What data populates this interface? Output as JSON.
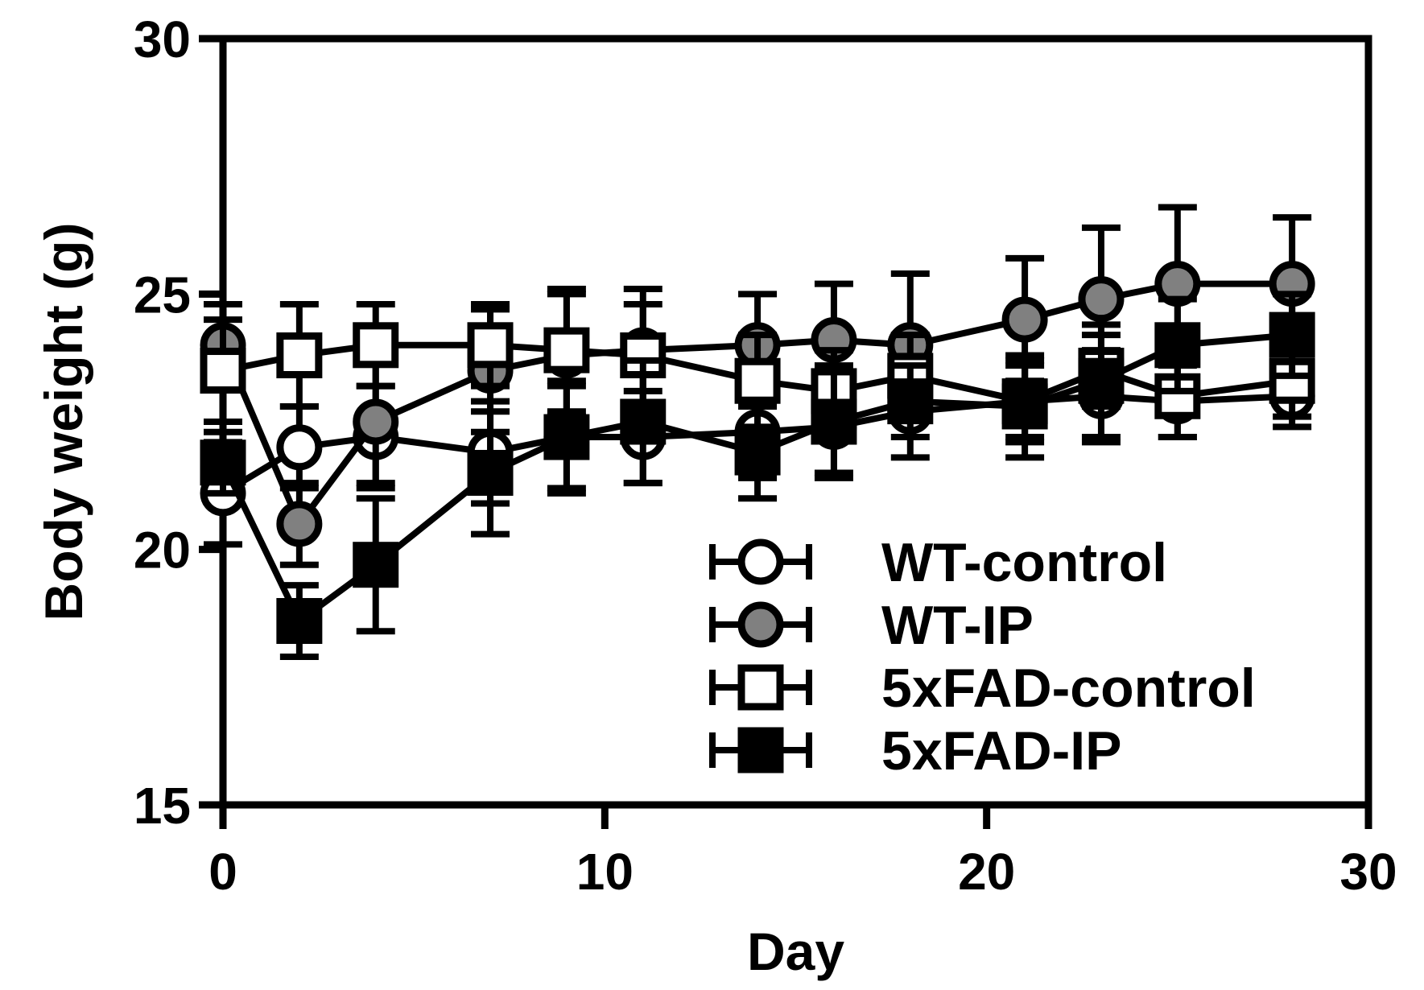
{
  "chart_data": {
    "type": "line",
    "title": "",
    "xlabel": "Day",
    "ylabel": "Body weight (g)",
    "xlim": [
      0,
      30
    ],
    "ylim": [
      15,
      30
    ],
    "xticks": [
      0,
      10,
      20,
      30
    ],
    "yticks": [
      15,
      20,
      25,
      30
    ],
    "grid": false,
    "legend_position": "bottom-right",
    "x": [
      0,
      2,
      4,
      7,
      9,
      11,
      14,
      16,
      18,
      21,
      23,
      25,
      28
    ],
    "series": [
      {
        "name": "WT-control",
        "marker": "circle",
        "fill": "#ffffff",
        "values": [
          21.1,
          22.0,
          22.2,
          21.9,
          22.2,
          22.2,
          22.3,
          22.4,
          22.7,
          22.9,
          23.0,
          22.9,
          23.0
        ],
        "errors": [
          1.0,
          0.8,
          1.0,
          1.0,
          1.0,
          0.9,
          0.9,
          0.9,
          0.9,
          0.7,
          0.9,
          0.7,
          0.6
        ]
      },
      {
        "name": "WT-IP",
        "marker": "circle",
        "fill": "#808080",
        "values": [
          24.0,
          20.5,
          22.5,
          23.5,
          23.8,
          23.9,
          24.0,
          24.1,
          24.0,
          24.5,
          24.9,
          25.2,
          25.2
        ],
        "errors": [
          0.8,
          0.8,
          1.2,
          1.2,
          1.2,
          1.2,
          1.0,
          1.1,
          1.4,
          1.2,
          1.4,
          1.5,
          1.3
        ]
      },
      {
        "name": "5xFAD-control",
        "marker": "square",
        "fill": "#ffffff",
        "values": [
          23.5,
          23.8,
          24.0,
          24.0,
          23.9,
          23.8,
          23.3,
          23.1,
          23.4,
          22.9,
          23.5,
          23.0,
          23.3
        ],
        "errors": [
          1.0,
          1.0,
          0.8,
          0.8,
          1.2,
          1.0,
          0.9,
          0.8,
          0.8,
          0.8,
          0.7,
          0.8,
          0.7
        ]
      },
      {
        "name": "5xFAD-IP",
        "marker": "square",
        "fill": "#000000",
        "values": [
          21.7,
          18.6,
          19.7,
          21.5,
          22.2,
          22.5,
          21.9,
          22.5,
          22.9,
          22.8,
          23.3,
          24.0,
          24.2
        ],
        "errors": [
          0.6,
          0.7,
          1.3,
          1.2,
          1.1,
          1.2,
          0.9,
          1.1,
          0.7,
          1.0,
          1.1,
          0.9,
          0.8
        ]
      }
    ]
  }
}
